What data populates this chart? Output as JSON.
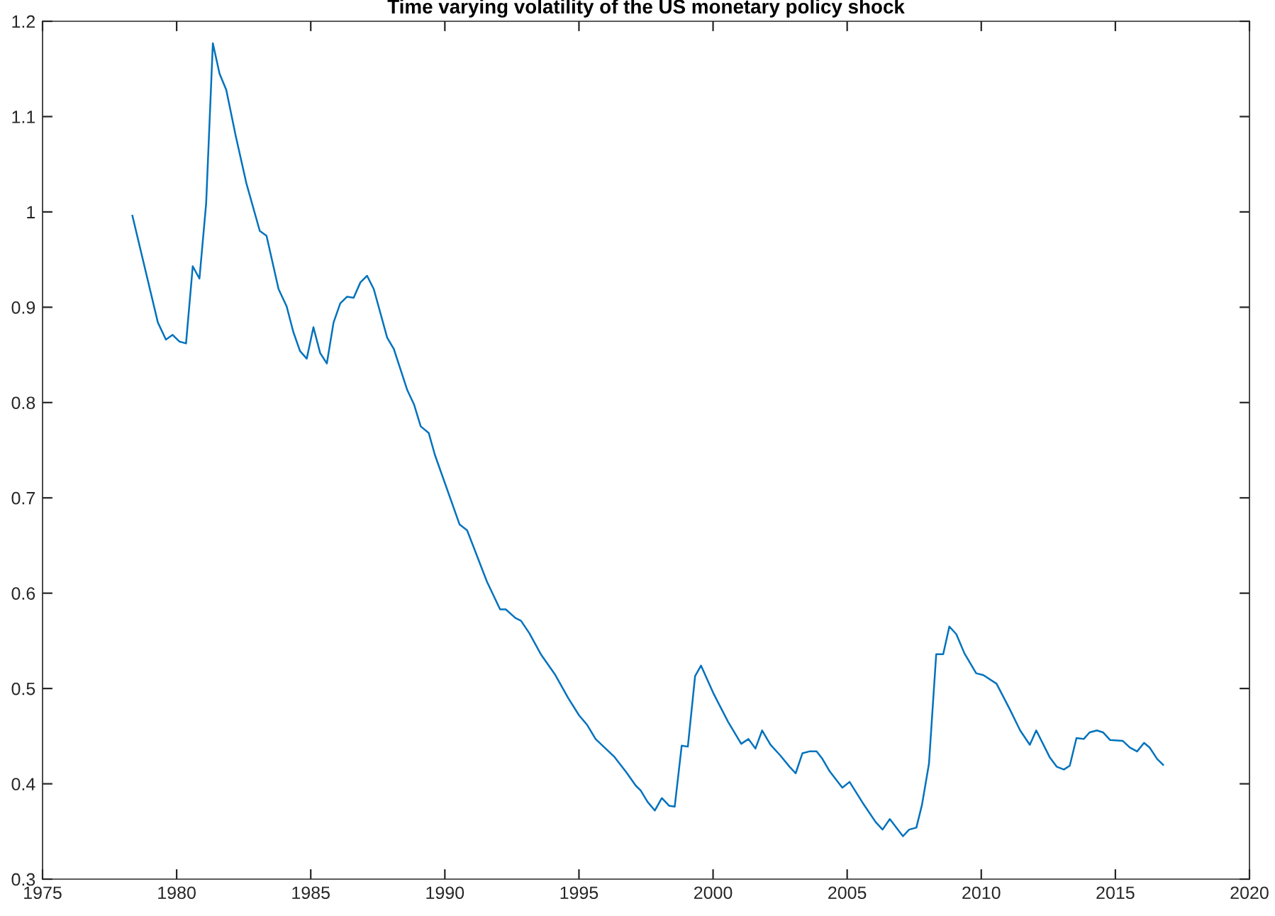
{
  "chart_data": {
    "type": "line",
    "title": "Time varying volatility of the US monetary policy shock",
    "xlim": [
      1975,
      2020
    ],
    "xticks": [
      1975,
      1980,
      1985,
      1990,
      1995,
      2000,
      2005,
      2010,
      2015,
      2020
    ],
    "ylim": [
      0.3,
      1.2
    ],
    "yticks": [
      0.3,
      0.4,
      0.5,
      0.6,
      0.7,
      0.8,
      0.9,
      1,
      1.1,
      1.2
    ],
    "grid": false,
    "legend": false,
    "series": [
      {
        "color": "#0072bd",
        "x": [
          1978.35,
          1979.3,
          1979.6,
          1979.85,
          1980.1,
          1980.35,
          1980.6,
          1980.85,
          1981.1,
          1981.35,
          1981.6,
          1981.85,
          1982.2,
          1982.6,
          1983.1,
          1983.35,
          1983.8,
          1984.1,
          1984.35,
          1984.6,
          1984.85,
          1985.1,
          1985.35,
          1985.6,
          1985.85,
          1986.1,
          1986.35,
          1986.6,
          1986.85,
          1987.1,
          1987.35,
          1987.85,
          1988.1,
          1988.6,
          1988.85,
          1989.1,
          1989.4,
          1989.63,
          1990.55,
          1990.83,
          1991.57,
          1992.06,
          1992.27,
          1992.63,
          1992.84,
          1993.15,
          1993.6,
          1994.1,
          1994.6,
          1995.0,
          1995.3,
          1995.62,
          1996.33,
          1996.77,
          1997.12,
          1997.3,
          1997.56,
          1997.83,
          1998.09,
          1998.36,
          1998.57,
          1998.83,
          1999.06,
          1999.33,
          1999.55,
          2000.03,
          2000.56,
          2001.05,
          2001.32,
          2001.58,
          2001.83,
          2002.14,
          2002.5,
          2002.85,
          2003.08,
          2003.33,
          2003.59,
          2003.86,
          2004.08,
          2004.35,
          2004.82,
          2005.09,
          2005.58,
          2006.06,
          2006.32,
          2006.59,
          2007.08,
          2007.31,
          2007.58,
          2007.79,
          2008.05,
          2008.32,
          2008.58,
          2008.81,
          2009.07,
          2009.37,
          2009.81,
          2010.08,
          2010.57,
          2011.05,
          2011.45,
          2011.81,
          2012.05,
          2012.55,
          2012.81,
          2013.08,
          2013.3,
          2013.55,
          2013.82,
          2014.04,
          2014.31,
          2014.54,
          2014.8,
          2015.28,
          2015.54,
          2015.81,
          2016.07,
          2016.28,
          2016.56,
          2016.78
        ],
        "values": [
          0.996,
          0.884,
          0.866,
          0.871,
          0.864,
          0.862,
          0.943,
          0.93,
          1.009,
          1.177,
          1.145,
          1.128,
          1.08,
          1.03,
          0.98,
          0.975,
          0.919,
          0.901,
          0.874,
          0.854,
          0.846,
          0.879,
          0.852,
          0.841,
          0.884,
          0.904,
          0.911,
          0.91,
          0.926,
          0.933,
          0.919,
          0.868,
          0.856,
          0.813,
          0.798,
          0.775,
          0.768,
          0.745,
          0.672,
          0.666,
          0.612,
          0.583,
          0.583,
          0.574,
          0.571,
          0.558,
          0.535,
          0.515,
          0.49,
          0.472,
          0.462,
          0.447,
          0.428,
          0.412,
          0.398,
          0.393,
          0.381,
          0.372,
          0.385,
          0.377,
          0.376,
          0.44,
          0.439,
          0.513,
          0.524,
          0.494,
          0.465,
          0.442,
          0.447,
          0.437,
          0.456,
          0.441,
          0.43,
          0.418,
          0.411,
          0.432,
          0.434,
          0.434,
          0.426,
          0.413,
          0.396,
          0.402,
          0.38,
          0.36,
          0.352,
          0.363,
          0.345,
          0.352,
          0.354,
          0.378,
          0.421,
          0.536,
          0.536,
          0.565,
          0.557,
          0.537,
          0.516,
          0.514,
          0.505,
          0.479,
          0.456,
          0.441,
          0.456,
          0.428,
          0.418,
          0.415,
          0.419,
          0.448,
          0.447,
          0.454,
          0.456,
          0.454,
          0.446,
          0.445,
          0.438,
          0.434,
          0.443,
          0.438,
          0.426,
          0.42
        ]
      }
    ]
  }
}
